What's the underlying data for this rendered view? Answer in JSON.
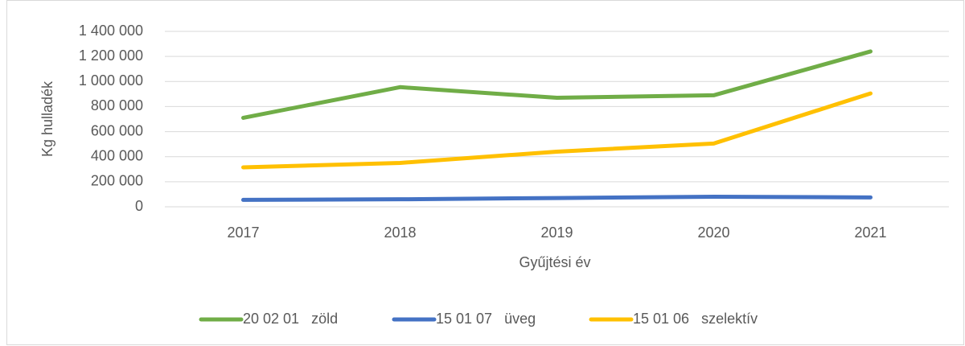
{
  "chart_data": {
    "type": "line",
    "x_label": "Gyűjtési év",
    "y_label": "Kg hulladék",
    "categories": [
      "2017",
      "2018",
      "2019",
      "2020",
      "2021"
    ],
    "series": [
      {
        "name": "20 02 01   zöld",
        "color": "#70ad47",
        "values": [
          710000,
          955000,
          870000,
          890000,
          1240000
        ]
      },
      {
        "name": "15 01 07   üveg",
        "color": "#4472c4",
        "values": [
          55000,
          60000,
          70000,
          80000,
          75000
        ]
      },
      {
        "name": "15 01 06   szelektív",
        "color": "#ffc000",
        "values": [
          315000,
          350000,
          440000,
          505000,
          905000
        ]
      }
    ],
    "ylim": [
      0,
      1400000
    ],
    "yticks": [
      0,
      {
        "value": 200000,
        "label": "200 000"
      },
      {
        "value": 400000,
        "label": "400 000"
      },
      {
        "value": 600000,
        "label": "600 000"
      },
      {
        "value": 800000,
        "label": "800 000"
      },
      {
        "value": 1000000,
        "label": "1 000 000"
      },
      {
        "value": 1200000,
        "label": "1 200 000"
      },
      {
        "value": 1400000,
        "label": "1 400 000"
      }
    ],
    "grid": true,
    "legend": "bottom"
  }
}
